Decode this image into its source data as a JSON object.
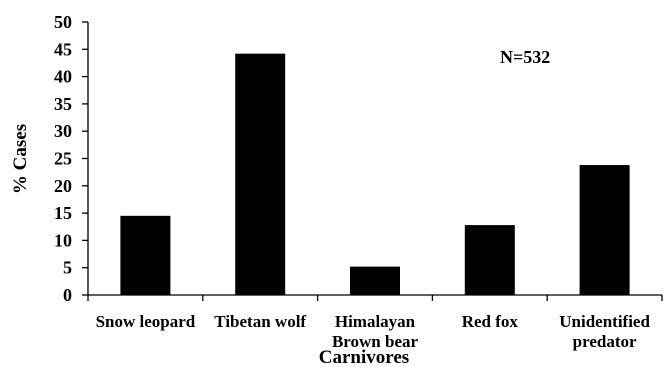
{
  "chart_data": {
    "type": "bar",
    "categories": [
      [
        "Snow leopard"
      ],
      [
        "Tibetan wolf"
      ],
      [
        "Himalayan",
        "Brown bear"
      ],
      [
        "Red fox"
      ],
      [
        "Unidentified",
        "predator"
      ]
    ],
    "values": [
      14.5,
      44.2,
      5.2,
      12.8,
      23.8
    ],
    "xlabel": "Carnivores",
    "ylabel": "% Cases",
    "ylim": [
      0,
      50
    ],
    "yticks": [
      0,
      5,
      10,
      15,
      20,
      25,
      30,
      35,
      40,
      45,
      50
    ],
    "annotation": "N=532",
    "grid": false,
    "bar_color": "#000000"
  }
}
